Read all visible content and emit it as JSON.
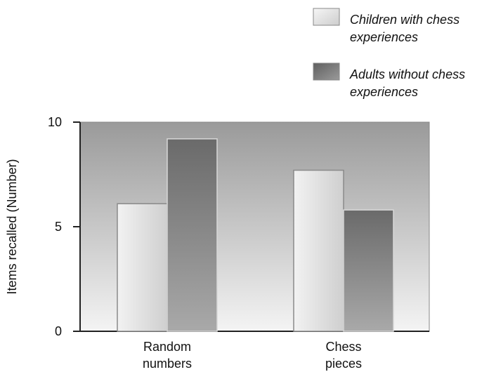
{
  "chart_data": {
    "type": "bar",
    "categories": [
      [
        "Random",
        "numbers"
      ],
      [
        "Chess",
        "pieces"
      ]
    ],
    "series": [
      {
        "name": [
          "Children with chess",
          "experiences"
        ],
        "values": [
          6.1,
          7.7
        ],
        "color": "#dcdcdc"
      },
      {
        "name": [
          "Adults without chess",
          "experiences"
        ],
        "values": [
          9.2,
          5.8
        ],
        "color": "#6f6f6f"
      }
    ],
    "ylabel": "Items recalled (Number)",
    "yticks": [
      0,
      5,
      10
    ],
    "ylim": [
      0,
      10
    ],
    "grid": false,
    "legend": "top-right"
  }
}
